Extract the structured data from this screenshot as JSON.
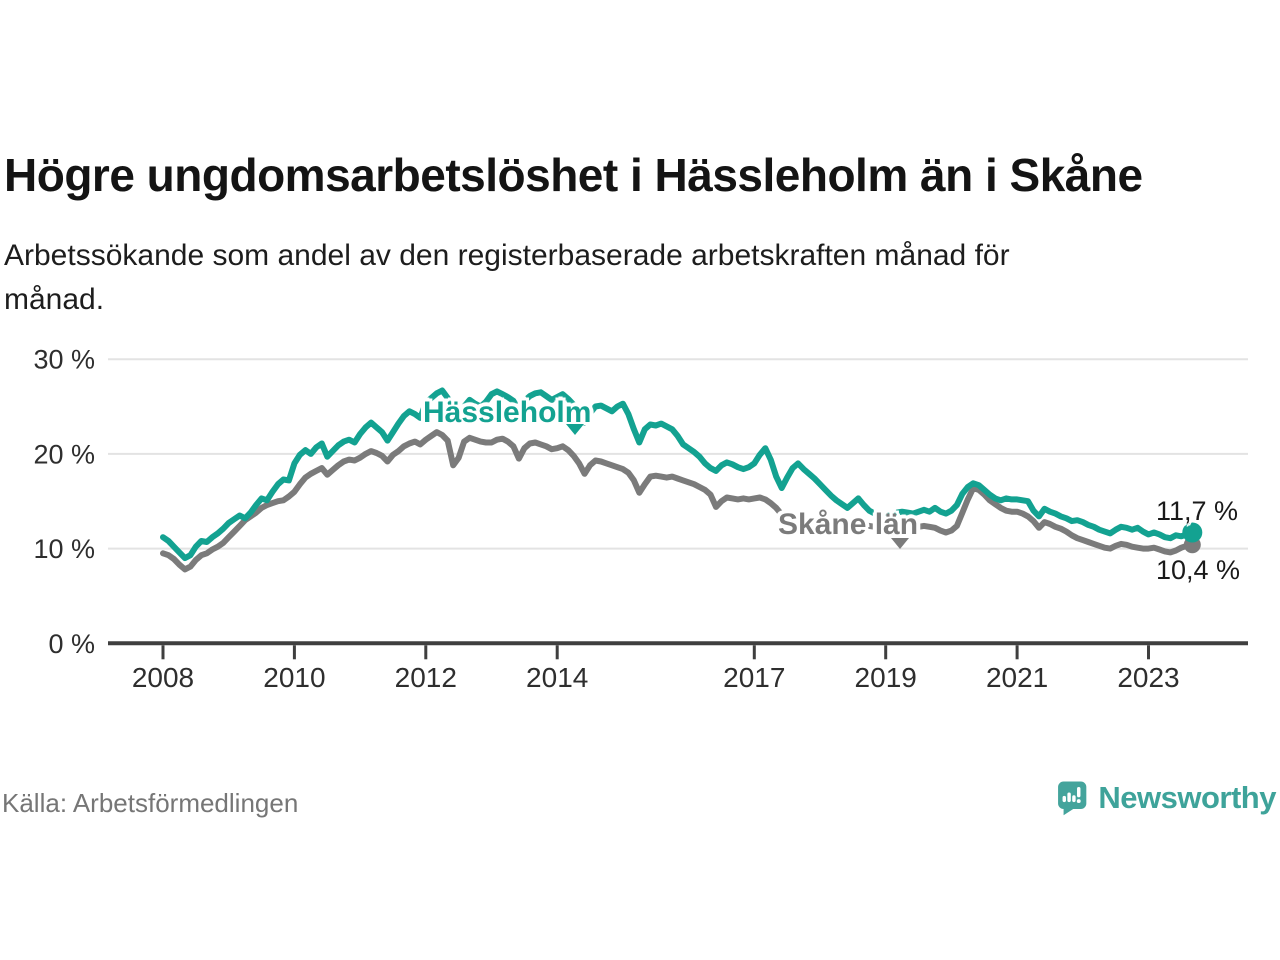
{
  "title": "Högre ungdomsarbetslöshet i Hässleholm än i Skåne",
  "subtitle_lines": [
    "Arbetssökande som andel av den registerbaserade arbetskraften månad för",
    "månad."
  ],
  "source": "Källa: Arbetsförmedlingen",
  "branding": {
    "wordmark": "Newsworthy"
  },
  "colors": {
    "hassleholm_teal": "#13A291",
    "skane_gray": "#7B7B7B",
    "grid": "#E3E3E3",
    "axis": "#3F3F3F",
    "axis_text": "#2E2E2E",
    "value_label": "#1A1A1A",
    "source_text": "#767676",
    "logo_teal": "#44A49C",
    "wordmark_teal": "#3EA39A"
  },
  "chart_data": {
    "type": "line",
    "title": "Högre ungdomsarbetslöshet i Hässleholm än i Skåne",
    "xlabel": "",
    "ylabel": "Arbetssökande som andel av den registerbaserade arbetskraften",
    "unit": "%",
    "x_start_year": 2008,
    "x_end": "2023-09",
    "months_per_point": 1,
    "ylim": [
      0,
      30
    ],
    "grid": "horizontal",
    "legend_position": "inline-labels",
    "x_ticks": [
      2008,
      2010,
      2012,
      2014,
      2017,
      2019,
      2021,
      2023
    ],
    "y_ticks": [
      {
        "value": 0,
        "label": "0 %"
      },
      {
        "value": 10,
        "label": "10 %"
      },
      {
        "value": 20,
        "label": "20 %"
      },
      {
        "value": 30,
        "label": "30 %"
      }
    ],
    "series": [
      {
        "name": "Hässleholm",
        "color": "#13A291",
        "end_label": "11,7 %",
        "end_value": 11.7,
        "values": [
          11.2,
          10.8,
          10.2,
          9.6,
          9.0,
          9.3,
          10.2,
          10.8,
          10.7,
          11.2,
          11.6,
          12.1,
          12.7,
          13.1,
          13.5,
          13.2,
          13.8,
          14.6,
          15.3,
          15.1,
          16.0,
          16.8,
          17.3,
          17.2,
          19.0,
          19.9,
          20.4,
          20.0,
          20.7,
          21.1,
          19.7,
          20.3,
          20.9,
          21.3,
          21.5,
          21.2,
          22.1,
          22.8,
          23.3,
          22.8,
          22.3,
          21.4,
          22.3,
          23.2,
          24.0,
          24.5,
          24.2,
          23.8,
          25.4,
          25.9,
          26.4,
          26.7,
          25.9,
          24.5,
          23.4,
          25.0,
          25.7,
          25.3,
          25.0,
          25.5,
          26.3,
          26.6,
          26.3,
          26.0,
          25.6,
          24.6,
          25.6,
          26.1,
          26.4,
          26.5,
          26.1,
          25.7,
          26.0,
          26.3,
          25.8,
          25.2,
          24.6,
          23.3,
          24.3,
          25.0,
          25.1,
          24.8,
          24.5,
          25.0,
          25.3,
          24.2,
          22.6,
          21.2,
          22.6,
          23.1,
          23.0,
          23.2,
          22.9,
          22.6,
          21.9,
          21.0,
          20.6,
          20.2,
          19.7,
          19.0,
          18.5,
          18.2,
          18.8,
          19.1,
          18.9,
          18.6,
          18.4,
          18.6,
          19.0,
          19.9,
          20.6,
          19.4,
          17.6,
          16.4,
          17.5,
          18.5,
          19.0,
          18.4,
          17.9,
          17.4,
          16.8,
          16.2,
          15.6,
          15.1,
          14.7,
          14.3,
          14.8,
          15.3,
          14.6,
          14.0,
          13.7,
          13.6,
          13.7,
          13.6,
          13.8,
          13.9,
          13.8,
          13.7,
          13.9,
          14.1,
          13.9,
          14.3,
          13.9,
          13.7,
          14.0,
          14.6,
          15.8,
          16.5,
          16.9,
          16.7,
          16.2,
          15.7,
          15.3,
          15.1,
          15.3,
          15.2,
          15.2,
          15.1,
          15.0,
          14.0,
          13.4,
          14.2,
          13.9,
          13.7,
          13.4,
          13.2,
          12.9,
          13.0,
          12.8,
          12.5,
          12.3,
          12.0,
          11.8,
          11.6,
          12.0,
          12.3,
          12.2,
          12.0,
          12.2,
          11.8,
          11.5,
          11.7,
          11.5,
          11.2,
          11.1,
          11.4,
          11.3,
          11.5,
          11.7
        ]
      },
      {
        "name": "Skåne län",
        "color": "#7B7B7B",
        "end_label": "10,4 %",
        "end_value": 10.4,
        "values": [
          9.5,
          9.3,
          8.9,
          8.3,
          7.8,
          8.1,
          8.8,
          9.3,
          9.5,
          9.9,
          10.2,
          10.6,
          11.2,
          11.8,
          12.4,
          13.0,
          13.4,
          13.8,
          14.3,
          14.6,
          14.8,
          15.0,
          15.1,
          15.5,
          16.0,
          16.8,
          17.5,
          17.9,
          18.2,
          18.5,
          17.8,
          18.3,
          18.8,
          19.2,
          19.4,
          19.3,
          19.6,
          20.0,
          20.3,
          20.1,
          19.8,
          19.2,
          19.9,
          20.3,
          20.8,
          21.1,
          21.3,
          21.0,
          21.5,
          21.9,
          22.3,
          22.0,
          21.4,
          18.8,
          19.6,
          21.3,
          21.7,
          21.5,
          21.3,
          21.2,
          21.2,
          21.5,
          21.6,
          21.3,
          20.8,
          19.5,
          20.6,
          21.1,
          21.2,
          21.0,
          20.8,
          20.5,
          20.6,
          20.8,
          20.4,
          19.8,
          19.0,
          17.9,
          18.8,
          19.3,
          19.2,
          19.0,
          18.8,
          18.6,
          18.4,
          18.0,
          17.2,
          15.9,
          16.8,
          17.6,
          17.7,
          17.6,
          17.5,
          17.6,
          17.4,
          17.2,
          17.0,
          16.8,
          16.5,
          16.2,
          15.7,
          14.4,
          15.0,
          15.4,
          15.3,
          15.2,
          15.3,
          15.2,
          15.3,
          15.4,
          15.2,
          14.8,
          14.3,
          13.6,
          13.2,
          13.5,
          13.4,
          13.2,
          13.0,
          12.9,
          12.8,
          12.7,
          12.5,
          12.4,
          12.3,
          12.1,
          12.4,
          12.6,
          12.5,
          12.4,
          12.3,
          12.2,
          12.3,
          12.4,
          12.3,
          12.2,
          12.3,
          12.2,
          12.3,
          12.4,
          12.3,
          12.2,
          11.9,
          11.7,
          11.9,
          12.4,
          13.8,
          15.2,
          16.4,
          16.2,
          15.7,
          15.1,
          14.7,
          14.3,
          14.0,
          13.9,
          13.9,
          13.7,
          13.4,
          12.9,
          12.2,
          12.8,
          12.6,
          12.3,
          12.1,
          11.8,
          11.4,
          11.1,
          10.9,
          10.7,
          10.5,
          10.3,
          10.1,
          10.0,
          10.3,
          10.5,
          10.4,
          10.2,
          10.1,
          10.0,
          10.0,
          10.1,
          9.9,
          9.7,
          9.6,
          9.8,
          10.1,
          10.3,
          10.4
        ]
      }
    ]
  }
}
